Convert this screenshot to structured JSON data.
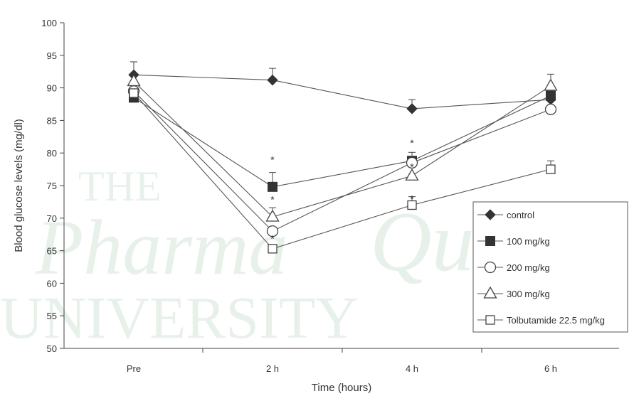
{
  "chart_data": {
    "type": "line",
    "xlabel": "Time (hours)",
    "ylabel": "Blood glucose levels (mg/dl)",
    "categories": [
      "Pre",
      "2 h",
      "4 h",
      "6 h"
    ],
    "ylim": [
      50,
      100
    ],
    "yticks": [
      50,
      55,
      60,
      65,
      70,
      75,
      80,
      85,
      90,
      95,
      100
    ],
    "grid": false,
    "legend_position": "bottom-right",
    "series": [
      {
        "name": "control",
        "marker": "diamond-filled",
        "values": [
          92.0,
          91.2,
          86.8,
          88.2
        ],
        "error": [
          2.0,
          1.8,
          1.4,
          0
        ]
      },
      {
        "name": "100 mg/kg",
        "marker": "square-filled",
        "values": [
          88.5,
          74.8,
          78.8,
          88.8
        ],
        "error": [
          0,
          2.2,
          1.3,
          0
        ]
      },
      {
        "name": "200 mg/kg",
        "marker": "circle-open",
        "values": [
          89.5,
          68.0,
          78.5,
          86.7
        ],
        "error": [
          0,
          0,
          0,
          0
        ]
      },
      {
        "name": "300 mg/kg",
        "marker": "triangle-open",
        "values": [
          91.0,
          70.2,
          76.5,
          90.3
        ],
        "error": [
          0,
          1.4,
          0,
          1.8
        ]
      },
      {
        "name": "Tolbutamide 22.5 mg/kg",
        "marker": "square-open",
        "values": [
          89.2,
          65.3,
          72.0,
          77.5
        ],
        "error": [
          0,
          0,
          1.3,
          1.3
        ]
      }
    ],
    "annotations": [
      {
        "text": "*",
        "x": "2 h",
        "y": 79.3
      },
      {
        "text": "*",
        "x": "2 h",
        "y": 73.2
      },
      {
        "text": "*",
        "x": "2 h",
        "y": 67.2
      },
      {
        "text": "*",
        "x": "4 h",
        "y": 81.9
      },
      {
        "text": "*",
        "x": "4 h",
        "y": 78.2
      },
      {
        "text": "*",
        "x": "4 h",
        "y": 73.3
      }
    ]
  },
  "watermark": {
    "lines": [
      "THE",
      "Pharma",
      "UNIVERSITY",
      "Quiz"
    ],
    "color": "#e7f1ea"
  },
  "colors": {
    "line": "#555555",
    "marker": "#333333",
    "axis": "#444444"
  }
}
